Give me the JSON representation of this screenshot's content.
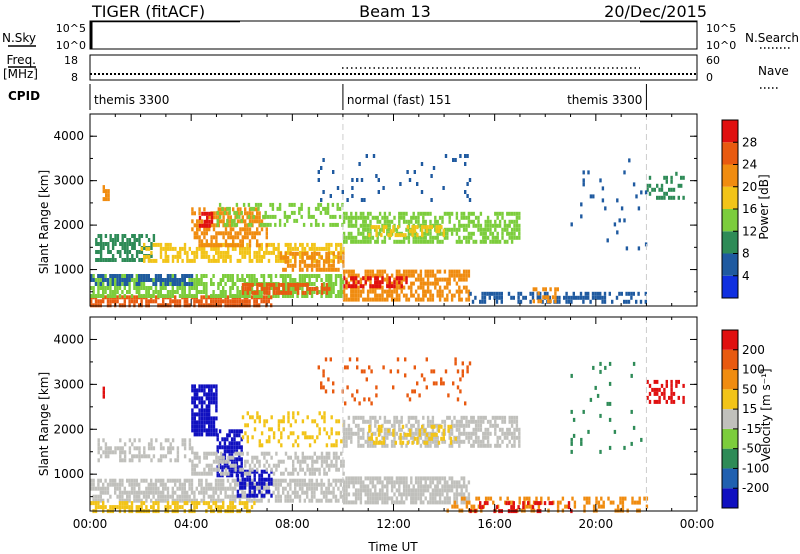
{
  "header": {
    "radar": "TIGER (fitACF)",
    "beam": "Beam 13",
    "date": "20/Dec/2015"
  },
  "top_panels": {
    "nsky_label": "N.Sky",
    "nsky_ticks": [
      "10^5",
      "10^0"
    ],
    "nsearch_label": "N.Search",
    "nsearch_ticks": [
      "10^5",
      "10^0"
    ],
    "freq_label": "Freq.",
    "freq_unit": "[MHz]",
    "freq_ticks": [
      "18",
      "8"
    ],
    "nave_label": "Nave",
    "nave_ticks": [
      "60",
      "0"
    ],
    "cpid_label": "CPID",
    "cpid_segments": [
      {
        "label": "themis 3300",
        "start_hour": 0,
        "end_hour": 10
      },
      {
        "label": "normal (fast) 151",
        "start_hour": 10,
        "end_hour": 22
      },
      {
        "label": "themis 3300",
        "start_hour": 22,
        "end_hour": 24
      }
    ]
  },
  "chart_data": [
    {
      "type": "heatmap",
      "name": "power",
      "xlabel": "",
      "ylabel": "Slant Range [km]",
      "xlim": [
        0,
        24
      ],
      "ylim": [
        180,
        4500
      ],
      "yticks": [
        "1000",
        "2000",
        "3000",
        "4000"
      ],
      "colorbar": {
        "label": "Power [dB]",
        "ticks": [
          "4",
          "8",
          "12",
          "16",
          "20",
          "24",
          "28"
        ],
        "colors": [
          "#1030e0",
          "#1f5aa0",
          "#2e8b57",
          "#7ccd3c",
          "#f2c418",
          "#f08c10",
          "#e85a10",
          "#e01010"
        ]
      },
      "bands": [
        {
          "t0": 0.0,
          "t1": 7.2,
          "r0": 220,
          "r1": 420,
          "color": "#e85a10",
          "density": 0.75
        },
        {
          "t0": 0.0,
          "t1": 10.0,
          "r0": 400,
          "r1": 900,
          "color": "#7ccd3c",
          "density": 0.7
        },
        {
          "t0": 0.0,
          "t1": 4.0,
          "r0": 650,
          "r1": 900,
          "color": "#1f5aa0",
          "density": 0.6
        },
        {
          "t0": 0.2,
          "t1": 2.5,
          "r0": 1200,
          "r1": 1800,
          "color": "#2e8b57",
          "density": 0.5
        },
        {
          "t0": 2.0,
          "t1": 10.0,
          "r0": 1200,
          "r1": 1600,
          "color": "#f2c418",
          "density": 0.6
        },
        {
          "t0": 4.0,
          "t1": 7.0,
          "r0": 1500,
          "r1": 2400,
          "color": "#f08c10",
          "density": 0.55
        },
        {
          "t0": 4.3,
          "t1": 4.8,
          "r0": 2000,
          "r1": 2300,
          "color": "#e01010",
          "density": 0.8
        },
        {
          "t0": 6.0,
          "t1": 9.5,
          "r0": 450,
          "r1": 700,
          "color": "#e85a10",
          "density": 0.7
        },
        {
          "t0": 7.5,
          "t1": 10.0,
          "r0": 1000,
          "r1": 1400,
          "color": "#f08c10",
          "density": 0.6
        },
        {
          "t0": 5.0,
          "t1": 10.0,
          "r0": 2000,
          "r1": 2500,
          "color": "#7ccd3c",
          "density": 0.35
        },
        {
          "t0": 10.0,
          "t1": 15.0,
          "r0": 300,
          "r1": 1000,
          "color": "#f08c10",
          "density": 0.65
        },
        {
          "t0": 10.0,
          "t1": 12.5,
          "r0": 650,
          "r1": 850,
          "color": "#e01010",
          "density": 0.55
        },
        {
          "t0": 10.0,
          "t1": 17.0,
          "r0": 1600,
          "r1": 2300,
          "color": "#7ccd3c",
          "density": 0.6
        },
        {
          "t0": 11.0,
          "t1": 14.0,
          "r0": 1800,
          "r1": 2000,
          "color": "#f2c418",
          "density": 0.5
        },
        {
          "t0": 15.0,
          "t1": 22.0,
          "r0": 230,
          "r1": 500,
          "color": "#1f5aa0",
          "density": 0.5
        },
        {
          "t0": 17.5,
          "t1": 18.5,
          "r0": 300,
          "r1": 600,
          "color": "#f08c10",
          "density": 0.45
        },
        {
          "t0": 9.0,
          "t1": 15.0,
          "r0": 2600,
          "r1": 3600,
          "color": "#1f5aa0",
          "density": 0.08
        },
        {
          "t0": 22.0,
          "t1": 23.5,
          "r0": 2600,
          "r1": 3200,
          "color": "#2e8b57",
          "density": 0.3
        },
        {
          "t0": 0.5,
          "t1": 0.7,
          "r0": 2600,
          "r1": 2900,
          "color": "#f08c10",
          "density": 0.7
        },
        {
          "t0": 19.0,
          "t1": 22.0,
          "r0": 1500,
          "r1": 3500,
          "color": "#1f5aa0",
          "density": 0.04
        }
      ]
    },
    {
      "type": "heatmap",
      "name": "velocity",
      "xlabel": "Time UT",
      "ylabel": "Slant Range [km]",
      "xlim": [
        0,
        24
      ],
      "ylim": [
        180,
        4500
      ],
      "xticks": [
        "00:00",
        "04:00",
        "08:00",
        "12:00",
        "16:00",
        "20:00",
        "00:00"
      ],
      "yticks": [
        "1000",
        "2000",
        "3000",
        "4000"
      ],
      "colorbar": {
        "label": "Velocity [m s⁻¹]",
        "ticks": [
          "200",
          "100",
          "50",
          "15",
          "-15",
          "-50",
          "-100",
          "-200"
        ],
        "colors": [
          "#1010c0",
          "#2060b0",
          "#2e8b57",
          "#7ccd3c",
          "#c0c0bc",
          "#f2c418",
          "#f08c10",
          "#e85a10",
          "#e01010"
        ]
      },
      "bands": [
        {
          "t0": 0.0,
          "t1": 10.0,
          "r0": 400,
          "r1": 900,
          "color": "#c0c0bc",
          "density": 0.7
        },
        {
          "t0": 0.0,
          "t1": 6.5,
          "r0": 220,
          "r1": 400,
          "color": "#f2c418",
          "density": 0.6
        },
        {
          "t0": 0.2,
          "t1": 4.0,
          "r0": 1300,
          "r1": 1800,
          "color": "#c0c0bc",
          "density": 0.4
        },
        {
          "t0": 4.0,
          "t1": 5.0,
          "r0": 1900,
          "r1": 3000,
          "color": "#1010c0",
          "density": 0.75
        },
        {
          "t0": 5.0,
          "t1": 6.0,
          "r0": 1000,
          "r1": 2000,
          "color": "#1010c0",
          "density": 0.7
        },
        {
          "t0": 5.8,
          "t1": 7.2,
          "r0": 500,
          "r1": 1100,
          "color": "#1010c0",
          "density": 0.7
        },
        {
          "t0": 4.0,
          "t1": 10.0,
          "r0": 1000,
          "r1": 1500,
          "color": "#c0c0bc",
          "density": 0.55
        },
        {
          "t0": 6.0,
          "t1": 10.0,
          "r0": 1600,
          "r1": 2400,
          "color": "#f2c418",
          "density": 0.25
        },
        {
          "t0": 10.0,
          "t1": 15.0,
          "r0": 350,
          "r1": 950,
          "color": "#c0c0bc",
          "density": 0.75
        },
        {
          "t0": 10.0,
          "t1": 17.0,
          "r0": 1600,
          "r1": 2300,
          "color": "#c0c0bc",
          "density": 0.6
        },
        {
          "t0": 11.0,
          "t1": 14.5,
          "r0": 1700,
          "r1": 2100,
          "color": "#f2c418",
          "density": 0.3
        },
        {
          "t0": 14.0,
          "t1": 22.0,
          "r0": 220,
          "r1": 500,
          "color": "#f08c10",
          "density": 0.4
        },
        {
          "t0": 15.0,
          "t1": 19.0,
          "r0": 220,
          "r1": 400,
          "color": "#e01010",
          "density": 0.25
        },
        {
          "t0": 22.0,
          "t1": 23.5,
          "r0": 2600,
          "r1": 3100,
          "color": "#e01010",
          "density": 0.35
        },
        {
          "t0": 0.5,
          "t1": 0.7,
          "r0": 2700,
          "r1": 2950,
          "color": "#e01010",
          "density": 0.7
        },
        {
          "t0": 9.0,
          "t1": 15.0,
          "r0": 2600,
          "r1": 3600,
          "color": "#e85a10",
          "density": 0.08
        },
        {
          "t0": 19.0,
          "t1": 22.0,
          "r0": 1500,
          "r1": 3500,
          "color": "#2e8b57",
          "density": 0.04
        }
      ]
    }
  ]
}
